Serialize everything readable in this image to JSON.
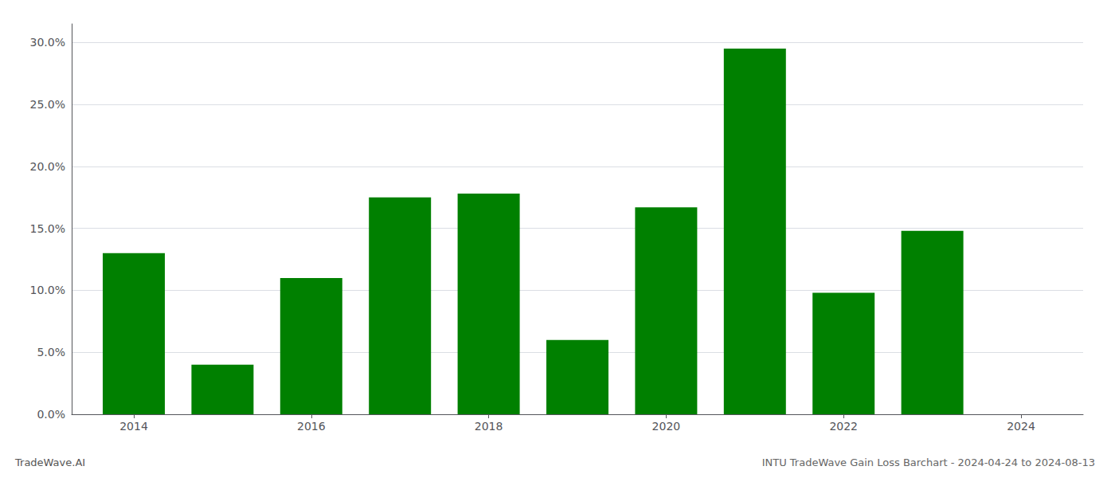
{
  "chart_data": {
    "type": "bar",
    "title": "INTU TradeWave Gain Loss Barchart - 2024-04-24 to 2024-08-13",
    "annotations": [
      "TradeWave.AI"
    ],
    "x": [
      2014,
      2015,
      2016,
      2017,
      2018,
      2019,
      2020,
      2021,
      2022,
      2023
    ],
    "values": [
      0.13,
      0.04,
      0.11,
      0.175,
      0.178,
      0.06,
      0.167,
      0.295,
      0.098,
      0.148
    ],
    "color": "#008000",
    "xlim": [
      2013.3,
      2024.7
    ],
    "xticks": [
      2014,
      2016,
      2018,
      2020,
      2022,
      2024
    ],
    "ylim": [
      0,
      0.315
    ],
    "yticks": [
      {
        "value": 0.0,
        "label": "0.0%"
      },
      {
        "value": 0.05,
        "label": "5.0%"
      },
      {
        "value": 0.1,
        "label": "10.0%"
      },
      {
        "value": 0.15,
        "label": "15.0%"
      },
      {
        "value": 0.2,
        "label": "20.0%"
      },
      {
        "value": 0.25,
        "label": "25.0%"
      },
      {
        "value": 0.3,
        "label": "30.0%"
      }
    ],
    "grid": true
  }
}
